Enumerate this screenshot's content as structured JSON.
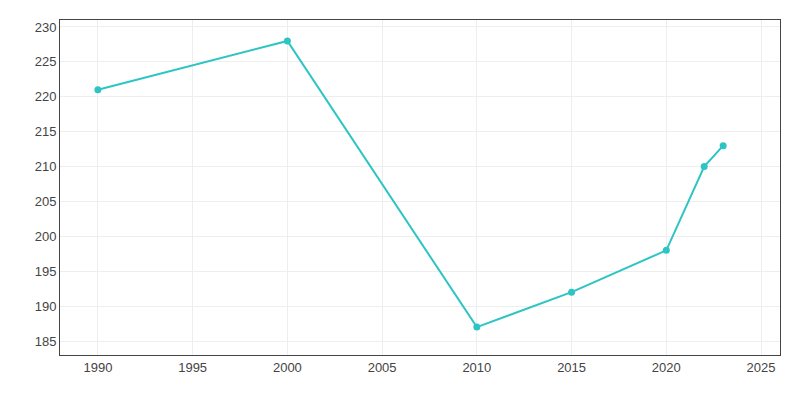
{
  "chart_data": {
    "type": "line",
    "x": [
      1990,
      2000,
      2010,
      2015,
      2020,
      2022,
      2023
    ],
    "values": [
      221,
      228,
      187,
      192,
      198,
      210,
      213
    ],
    "color": "#2ec4c4",
    "marker": "circle",
    "xlim": [
      1988,
      2026
    ],
    "ylim": [
      183,
      231
    ],
    "xticks": [
      1990,
      1995,
      2000,
      2005,
      2010,
      2015,
      2020,
      2025
    ],
    "yticks": [
      185,
      190,
      195,
      200,
      205,
      210,
      215,
      220,
      225,
      230
    ],
    "grid": true
  }
}
